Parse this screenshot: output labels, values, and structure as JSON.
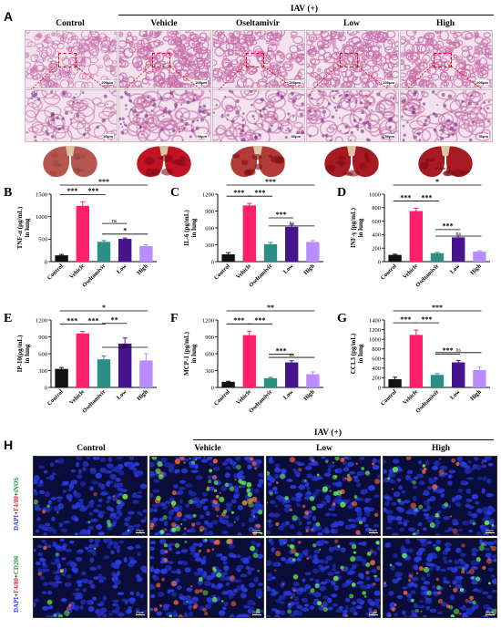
{
  "panels": {
    "A": {
      "letter": "A"
    },
    "H": {
      "letter": "H"
    }
  },
  "groups_A": [
    "Control",
    "Vehicle",
    "Oseltamivir",
    "Low",
    "High"
  ],
  "groups_H": [
    "Control",
    "Vehicle",
    "Low",
    "High"
  ],
  "iav_label": "IAV (+)",
  "scalebar_low": "200μm",
  "scalebar_high": "50μm",
  "scalebar_fluor": "20μm",
  "row_labels_H": [
    {
      "dapi": "DAPI",
      "f480": "F4/80",
      "marker": "iNOS"
    },
    {
      "dapi": "DAPI",
      "f480": "F4/80",
      "marker": "CD206"
    }
  ],
  "colors": {
    "Control": "#111111",
    "Vehicle": "#ff1f6b",
    "Oseltamivir": "#2c8f86",
    "Low": "#46148c",
    "High": "#b98cff",
    "histology_bg": "#f3e3ee",
    "histology_tissue": "#c76fa9",
    "zoom_box": "#ee0000",
    "fluor_bg": "#0a0d3a"
  },
  "chart_data": [
    {
      "type": "bar",
      "panel": "B",
      "categories": [
        "Control",
        "Vehicle",
        "Oseltamivir",
        "Low",
        "High"
      ],
      "values": [
        140,
        1240,
        440,
        505,
        345
      ],
      "errors": [
        20,
        90,
        30,
        20,
        30
      ],
      "ylabel": "TNF-α (pg/mL)",
      "ylabel2": "in lung",
      "ylim": [
        0,
        1500
      ],
      "yticks": [
        0,
        500,
        1000,
        1500
      ],
      "sig": [
        {
          "from": 0,
          "to": 1,
          "label": "***"
        },
        {
          "from": 1,
          "to": 2,
          "label": "***"
        },
        {
          "from": 0,
          "to": 4,
          "label": "***"
        },
        {
          "from": 2,
          "to": 3,
          "label": "ns"
        },
        {
          "from": 2,
          "to": 4,
          "label": "*"
        }
      ]
    },
    {
      "type": "bar",
      "panel": "C",
      "categories": [
        "Control",
        "Vehicle",
        "Oseltamivir",
        "Low",
        "High"
      ],
      "values": [
        130,
        1000,
        310,
        620,
        350
      ],
      "errors": [
        30,
        35,
        30,
        45,
        25
      ],
      "ylabel": "IL-6 (pg/mL)",
      "ylabel2": "in lung",
      "ylim": [
        0,
        1200
      ],
      "yticks": [
        0,
        300,
        600,
        900,
        1200
      ],
      "sig": [
        {
          "from": 0,
          "to": 1,
          "label": "***"
        },
        {
          "from": 1,
          "to": 2,
          "label": "***"
        },
        {
          "from": 0,
          "to": 4,
          "label": "***"
        },
        {
          "from": 2,
          "to": 4,
          "label": "ns"
        },
        {
          "from": 2,
          "to": 3,
          "label": "***"
        }
      ]
    },
    {
      "type": "bar",
      "panel": "D",
      "categories": [
        "Control",
        "Vehicle",
        "Oseltamivir",
        "Low",
        "High"
      ],
      "values": [
        100,
        750,
        125,
        360,
        150
      ],
      "errors": [
        10,
        40,
        12,
        20,
        12
      ],
      "ylabel": "INF-γ (pg/mL)",
      "ylabel2": "in lung",
      "ylim": [
        0,
        1000
      ],
      "yticks": [
        0,
        200,
        400,
        600,
        800,
        1000
      ],
      "sig": [
        {
          "from": 0,
          "to": 1,
          "label": "***"
        },
        {
          "from": 1,
          "to": 2,
          "label": "***"
        },
        {
          "from": 0,
          "to": 4,
          "label": "*"
        },
        {
          "from": 2,
          "to": 4,
          "label": "ns"
        },
        {
          "from": 2,
          "to": 3,
          "label": "***"
        }
      ]
    },
    {
      "type": "bar",
      "panel": "E",
      "categories": [
        "Control",
        "Vehicle",
        "Oseltamivir",
        "Low",
        "High"
      ],
      "values": [
        330,
        960,
        500,
        780,
        480
      ],
      "errors": [
        25,
        35,
        60,
        100,
        120
      ],
      "ylabel": "IP-10(pg/mL)",
      "ylabel2": "in lung",
      "ylim": [
        0,
        1200
      ],
      "yticks": [
        0,
        300,
        600,
        900,
        1200
      ],
      "sig": [
        {
          "from": 0,
          "to": 1,
          "label": "***"
        },
        {
          "from": 1,
          "to": 2,
          "label": "***"
        },
        {
          "from": 0,
          "to": 4,
          "label": "*"
        },
        {
          "from": 2,
          "to": 3,
          "label": "**"
        },
        {
          "from": 2,
          "to": 4,
          "label": "ns"
        }
      ]
    },
    {
      "type": "bar",
      "panel": "F",
      "categories": [
        "Control",
        "Vehicle",
        "Oseltamivir",
        "Low",
        "High"
      ],
      "values": [
        100,
        930,
        165,
        445,
        235
      ],
      "errors": [
        10,
        70,
        15,
        30,
        40
      ],
      "ylabel": "MCP-1 (pg/mL)",
      "ylabel2": "in lung",
      "ylim": [
        0,
        1200
      ],
      "yticks": [
        0,
        300,
        600,
        900,
        1200
      ],
      "sig": [
        {
          "from": 0,
          "to": 1,
          "label": "***"
        },
        {
          "from": 1,
          "to": 2,
          "label": "***"
        },
        {
          "from": 0,
          "to": 4,
          "label": "**"
        },
        {
          "from": 2,
          "to": 4,
          "label": "ns"
        },
        {
          "from": 2,
          "to": 3,
          "label": "***"
        }
      ]
    },
    {
      "type": "bar",
      "panel": "G",
      "categories": [
        "Control",
        "Vehicle",
        "Oseltamivir",
        "Low",
        "High"
      ],
      "values": [
        170,
        1090,
        260,
        520,
        360
      ],
      "errors": [
        40,
        100,
        25,
        40,
        60
      ],
      "ylabel": "CCL3 (pg/mL)",
      "ylabel2": "in lung",
      "ylim": [
        0,
        1400
      ],
      "yticks": [
        0,
        200,
        400,
        600,
        800,
        1000,
        1200,
        1400
      ],
      "sig": [
        {
          "from": 0,
          "to": 1,
          "label": "***"
        },
        {
          "from": 1,
          "to": 2,
          "label": "***"
        },
        {
          "from": 0,
          "to": 4,
          "label": "***"
        },
        {
          "from": 2,
          "to": 4,
          "label": "ns"
        },
        {
          "from": 2,
          "to": 3,
          "label": "***"
        }
      ]
    }
  ]
}
